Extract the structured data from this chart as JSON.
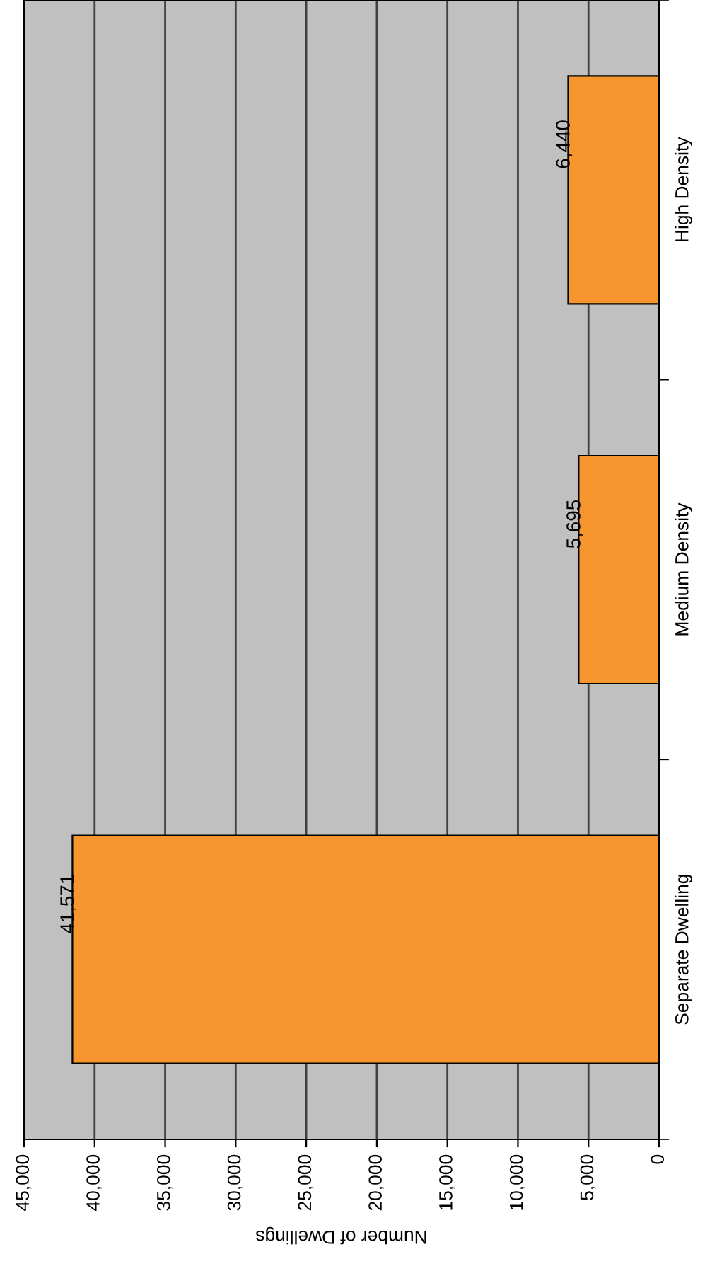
{
  "chart_data": {
    "type": "bar",
    "orientation": "horizontal",
    "xlabel": "Number of Dwellings",
    "categories": [
      "High Density",
      "Medium Density",
      "Separate Dwelling"
    ],
    "values": [
      6440,
      5695,
      41571
    ],
    "color": "#f7962f",
    "value_labels": [
      "6,440",
      "5,695",
      "41,571"
    ],
    "xlim": [
      45000,
      0
    ],
    "xticks": [
      {
        "value": 45000,
        "label": "45,000"
      },
      {
        "value": 40000,
        "label": "40,000"
      },
      {
        "value": 35000,
        "label": "35,000"
      },
      {
        "value": 30000,
        "label": "30,000"
      },
      {
        "value": 25000,
        "label": "25,000"
      },
      {
        "value": 20000,
        "label": "20,000"
      },
      {
        "value": 15000,
        "label": "15,000"
      },
      {
        "value": 10000,
        "label": "10,000"
      },
      {
        "value": 5000,
        "label": "5,000"
      },
      0
    ],
    "grid": "x",
    "legend": false
  }
}
